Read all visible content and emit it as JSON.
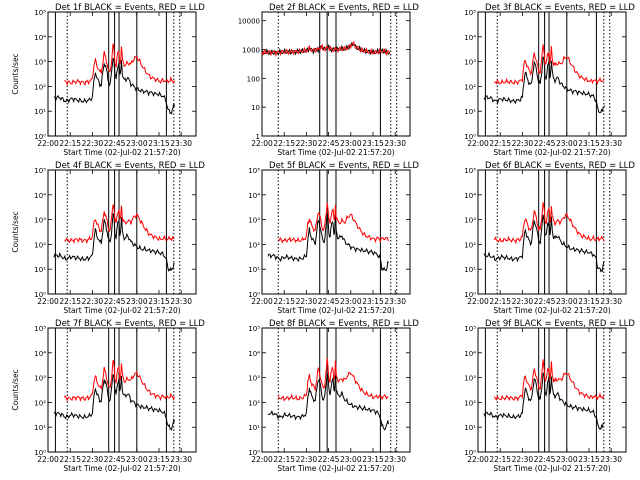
{
  "figure": {
    "background": "#ffffff",
    "axis_color": "#000000"
  },
  "chart_data": [
    {
      "type": "line",
      "title": "Det 1f BLACK = Events, RED = LLD",
      "xlabel": "Start Time (02-Jul-02 21:57:20)",
      "ylabel": "Counts/sec",
      "yscale": "log",
      "ylim": [
        1,
        100000
      ],
      "yticks": [
        "10⁰",
        "10¹",
        "10²",
        "10³",
        "10⁴",
        "10⁵"
      ],
      "xticks": [
        "22:00",
        "22:15",
        "22:30",
        "22:45",
        "23:00",
        "23:15",
        "23:30"
      ],
      "xlim": [
        "22:00",
        "23:40"
      ],
      "solid_markers": [
        "22:05",
        "22:41",
        "22:45",
        "22:48",
        "23:00",
        "23:20"
      ],
      "dotted_markers": [
        "22:13",
        "23:25",
        "23:29"
      ],
      "series": [
        {
          "color": "#000000",
          "profile": "events"
        },
        {
          "color": "#ff0000",
          "profile": "lld"
        }
      ]
    },
    {
      "type": "line",
      "title": "Det 2f BLACK = Events, RED = LLD",
      "xlabel": "Start Time (02-Jul-02 21:57:20)",
      "ylabel": "",
      "yscale": "log",
      "ylim": [
        1,
        20000
      ],
      "yticks": [
        "1",
        "10",
        "100",
        "1000",
        "10000"
      ],
      "xticks": [
        "22:00",
        "22:15",
        "22:30",
        "22:45",
        "23:00",
        "23:15",
        "23:30"
      ],
      "xlim": [
        "22:00",
        "23:40"
      ],
      "solid_markers": [
        "22:39",
        "22:44",
        "22:50",
        "23:20"
      ],
      "dotted_markers": [
        "22:11",
        "23:27",
        "23:31"
      ],
      "series": [
        {
          "color": "#000000",
          "profile": "det2"
        },
        {
          "color": "#ff0000",
          "profile": "det2"
        }
      ]
    },
    {
      "type": "line",
      "title": "Det 3f BLACK = Events, RED = LLD",
      "xlabel": "Start Time (02-Jul-02 21:57:20)",
      "ylabel": "",
      "yscale": "log",
      "ylim": [
        1,
        100000
      ],
      "yticks": [
        "10⁰",
        "10¹",
        "10²",
        "10³",
        "10⁴",
        "10⁵"
      ],
      "xticks": [
        "22:00",
        "22:15",
        "22:30",
        "22:45",
        "23:00",
        "23:15",
        "23:30"
      ],
      "xlim": [
        "22:00",
        "23:40"
      ],
      "solid_markers": [
        "22:05",
        "22:41",
        "22:45",
        "22:48",
        "23:00",
        "23:20"
      ],
      "dotted_markers": [
        "22:13",
        "23:25",
        "23:29"
      ],
      "series": [
        {
          "color": "#000000",
          "profile": "events"
        },
        {
          "color": "#ff0000",
          "profile": "lld"
        }
      ]
    },
    {
      "type": "line",
      "title": "Det 4f BLACK = Events, RED = LLD",
      "xlabel": "Start Time (02-Jul-02 21:57:20)",
      "ylabel": "Counts/sec",
      "yscale": "log",
      "ylim": [
        1,
        100000
      ],
      "yticks": [
        "10⁰",
        "10¹",
        "10²",
        "10³",
        "10⁴",
        "10⁵"
      ],
      "xticks": [
        "22:00",
        "22:15",
        "22:30",
        "22:45",
        "23:00",
        "23:15",
        "23:30"
      ],
      "xlim": [
        "22:00",
        "23:40"
      ],
      "solid_markers": [
        "22:05",
        "22:41",
        "22:45",
        "22:48",
        "23:00",
        "23:20"
      ],
      "dotted_markers": [
        "22:13",
        "23:25",
        "23:29"
      ],
      "series": [
        {
          "color": "#000000",
          "profile": "events"
        },
        {
          "color": "#ff0000",
          "profile": "lld"
        }
      ]
    },
    {
      "type": "line",
      "title": "Det 5f BLACK = Events, RED = LLD",
      "xlabel": "Start Time (02-Jul-02 21:57:20)",
      "ylabel": "",
      "yscale": "log",
      "ylim": [
        1,
        100000
      ],
      "yticks": [
        "10⁰",
        "10¹",
        "10²",
        "10³",
        "10⁴",
        "10⁵"
      ],
      "xticks": [
        "22:00",
        "22:15",
        "22:30",
        "22:45",
        "23:00",
        "23:15",
        "23:30"
      ],
      "xlim": [
        "22:00",
        "23:40"
      ],
      "solid_markers": [
        "22:39",
        "22:44",
        "22:50",
        "23:20"
      ],
      "dotted_markers": [
        "22:11",
        "23:27",
        "23:31"
      ],
      "series": [
        {
          "color": "#000000",
          "profile": "events"
        },
        {
          "color": "#ff0000",
          "profile": "lld"
        }
      ]
    },
    {
      "type": "line",
      "title": "Det 6f BLACK = Events, RED = LLD",
      "xlabel": "Start Time (02-Jul-02 21:57:20)",
      "ylabel": "",
      "yscale": "log",
      "ylim": [
        1,
        100000
      ],
      "yticks": [
        "10⁰",
        "10¹",
        "10²",
        "10³",
        "10⁴",
        "10⁵"
      ],
      "xticks": [
        "22:00",
        "22:15",
        "22:30",
        "22:45",
        "23:00",
        "23:15",
        "23:30"
      ],
      "xlim": [
        "22:00",
        "23:40"
      ],
      "solid_markers": [
        "22:05",
        "22:41",
        "22:45",
        "22:48",
        "23:00",
        "23:20"
      ],
      "dotted_markers": [
        "22:13",
        "23:25",
        "23:29"
      ],
      "series": [
        {
          "color": "#000000",
          "profile": "events"
        },
        {
          "color": "#ff0000",
          "profile": "lld"
        }
      ]
    },
    {
      "type": "line",
      "title": "Det 7f BLACK = Events, RED = LLD",
      "xlabel": "Start Time (02-Jul-02 21:57:20)",
      "ylabel": "Counts/sec",
      "yscale": "log",
      "ylim": [
        1,
        100000
      ],
      "yticks": [
        "10⁰",
        "10¹",
        "10²",
        "10³",
        "10⁴",
        "10⁵"
      ],
      "xticks": [
        "22:00",
        "22:15",
        "22:30",
        "22:45",
        "23:00",
        "23:15",
        "23:30"
      ],
      "xlim": [
        "22:00",
        "23:40"
      ],
      "solid_markers": [
        "22:05",
        "22:41",
        "22:45",
        "22:48",
        "23:00",
        "23:20"
      ],
      "dotted_markers": [
        "22:13",
        "23:25",
        "23:29"
      ],
      "series": [
        {
          "color": "#000000",
          "profile": "events"
        },
        {
          "color": "#ff0000",
          "profile": "lld"
        }
      ]
    },
    {
      "type": "line",
      "title": "Det 8f BLACK = Events, RED = LLD",
      "xlabel": "Start Time (02-Jul-02 21:57:20)",
      "ylabel": "",
      "yscale": "log",
      "ylim": [
        1,
        100000
      ],
      "yticks": [
        "10⁰",
        "10¹",
        "10²",
        "10³",
        "10⁴",
        "10⁵"
      ],
      "xticks": [
        "22:00",
        "22:15",
        "22:30",
        "22:45",
        "23:00",
        "23:15",
        "23:30"
      ],
      "xlim": [
        "22:00",
        "23:40"
      ],
      "solid_markers": [
        "22:39",
        "22:44",
        "22:50",
        "23:20"
      ],
      "dotted_markers": [
        "22:11",
        "23:27",
        "23:31"
      ],
      "series": [
        {
          "color": "#000000",
          "profile": "events"
        },
        {
          "color": "#ff0000",
          "profile": "lld"
        }
      ]
    },
    {
      "type": "line",
      "title": "Det 9f BLACK = Events, RED = LLD",
      "xlabel": "Start Time (02-Jul-02 21:57:20)",
      "ylabel": "",
      "yscale": "log",
      "ylim": [
        1,
        100000
      ],
      "yticks": [
        "10⁰",
        "10¹",
        "10²",
        "10³",
        "10⁴",
        "10⁵"
      ],
      "xticks": [
        "22:00",
        "22:15",
        "22:30",
        "22:45",
        "23:00",
        "23:15",
        "23:30"
      ],
      "xlim": [
        "22:00",
        "23:40"
      ],
      "solid_markers": [
        "22:05",
        "22:41",
        "22:45",
        "22:48",
        "23:00",
        "23:20"
      ],
      "dotted_markers": [
        "22:13",
        "23:25",
        "23:29"
      ],
      "series": [
        {
          "color": "#000000",
          "profile": "events"
        },
        {
          "color": "#ff0000",
          "profile": "lld"
        }
      ]
    }
  ]
}
